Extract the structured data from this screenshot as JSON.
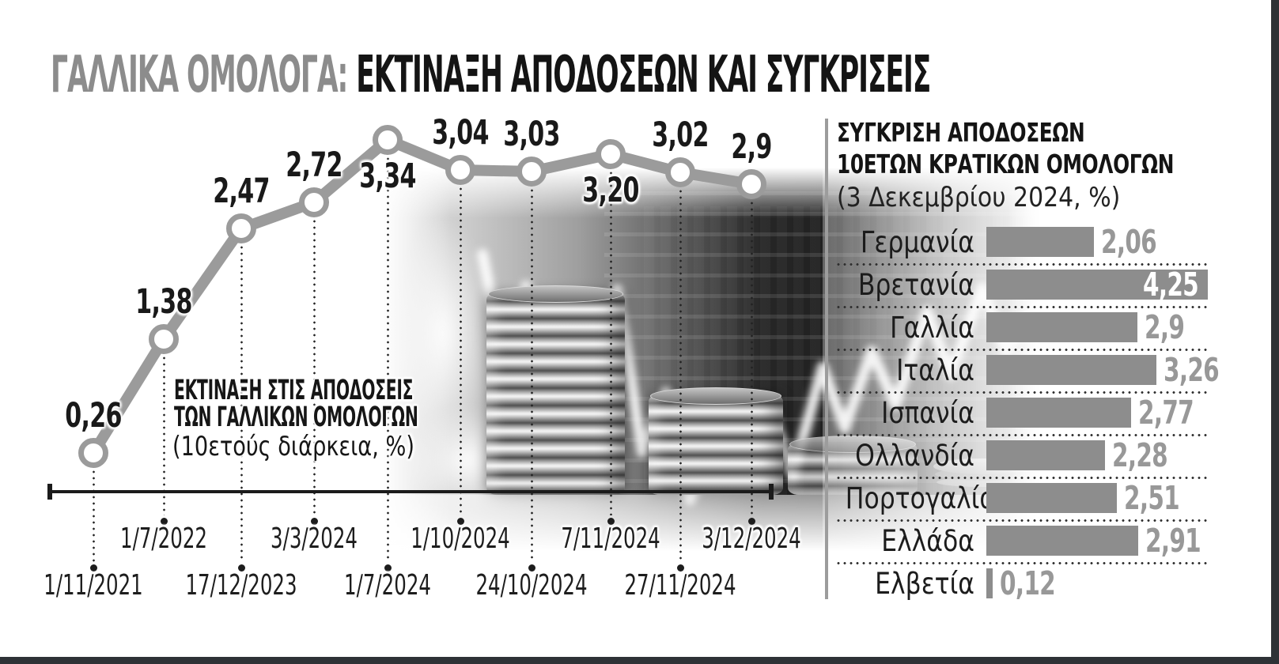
{
  "title": {
    "prefix": "ΓΑΛΛΙΚΑ ΟΜΟΛΟΓΑ:",
    "main": " ΕΚΤΙΝΑΞΗ ΑΠΟΔΟΣΕΩΝ ΚΑΙ ΣΥΓΚΡΙΣΕΙΣ"
  },
  "line_chart": {
    "annotation_line1": "ΕΚΤΙΝΑΞΗ ΣΤΙΣ ΑΠΟΔΟΣΕΙΣ",
    "annotation_line2": "ΤΩΝ ΓΑΛΛΙΚΩΝ ΟΜΟΛΟΓΩΝ",
    "annotation_line3": "(10ετούς διάρκεια, %)",
    "points": [
      {
        "date": "1/11/2021",
        "value": 0.26,
        "label": "0,26",
        "label_side": "above",
        "date_row": "lower"
      },
      {
        "date": "1/7/2022",
        "value": 1.38,
        "label": "1,38",
        "label_side": "above",
        "date_row": "upper"
      },
      {
        "date": "17/12/2023",
        "value": 2.47,
        "label": "2,47",
        "label_side": "above",
        "date_row": "lower"
      },
      {
        "date": "3/3/2024",
        "value": 2.72,
        "label": "2,72",
        "label_side": "above",
        "date_row": "upper"
      },
      {
        "date": "1/7/2024",
        "value": 3.34,
        "label": "3,34",
        "label_side": "below",
        "date_row": "lower"
      },
      {
        "date": "1/10/2024",
        "value": 3.04,
        "label": "3,04",
        "label_side": "above",
        "date_row": "upper"
      },
      {
        "date": "24/10/2024",
        "value": 3.03,
        "label": "3,03",
        "label_side": "above",
        "date_row": "lower"
      },
      {
        "date": "7/11/2024",
        "value": 3.2,
        "label": "3,20",
        "label_side": "below",
        "date_row": "upper"
      },
      {
        "date": "27/11/2024",
        "value": 3.02,
        "label": "3,02",
        "label_side": "above",
        "date_row": "lower"
      },
      {
        "date": "3/12/2024",
        "value": 2.9,
        "label": "2,9",
        "label_side": "above",
        "date_row": "upper"
      }
    ]
  },
  "bar_panel": {
    "heading_line1": "ΣΥΓΚΡΙΣΗ ΑΠΟΔΟΣΕΩΝ",
    "heading_line2": "10ΕΤΩΝ ΚΡΑΤΙΚΩΝ ΟΜΟΛΟΓΩΝ",
    "subtitle": "(3 Δεκεμβρίου 2024, %)",
    "max_value": 4.25,
    "rows": [
      {
        "country": "Γερμανία",
        "value": 2.06,
        "label": "2,06",
        "value_inside": false
      },
      {
        "country": "Βρετανία",
        "value": 4.25,
        "label": "4,25",
        "value_inside": true
      },
      {
        "country": "Γαλλία",
        "value": 2.9,
        "label": "2,9",
        "value_inside": false
      },
      {
        "country": "Ιταλία",
        "value": 3.26,
        "label": "3,26",
        "value_inside": false
      },
      {
        "country": "Ισπανία",
        "value": 2.77,
        "label": "2,77",
        "value_inside": false
      },
      {
        "country": "Ολλανδία",
        "value": 2.28,
        "label": "2,28",
        "value_inside": false
      },
      {
        "country": "Πορτογαλία",
        "value": 2.51,
        "label": "2,51",
        "value_inside": false
      },
      {
        "country": "Ελλάδα",
        "value": 2.91,
        "label": "2,91",
        "value_inside": false
      },
      {
        "country": "Ελβετία",
        "value": 0.12,
        "label": "0,12",
        "value_inside": false
      }
    ]
  },
  "colors": {
    "line_gray": "#9b9b9b",
    "bar_gray": "#8d8d8d",
    "value_gray": "#989898",
    "value_inside_white": "#ffffff",
    "title_gray": "#8c8c8c",
    "ink_black": "#151515",
    "edge_strip": "#2e3236"
  },
  "chart_data": [
    {
      "type": "line",
      "title": "ΕΚΤΙΝΑΞΗ ΣΤΙΣ ΑΠΟΔΟΣΕΙΣ ΤΩΝ ΓΑΛΛΙΚΩΝ ΟΜΟΛΟΓΩΝ",
      "subtitle": "(10ετούς διάρκεια, %)",
      "x": [
        "1/11/2021",
        "1/7/2022",
        "17/12/2023",
        "3/3/2024",
        "1/7/2024",
        "1/10/2024",
        "24/10/2024",
        "7/11/2024",
        "27/11/2024",
        "3/12/2024"
      ],
      "y": [
        0.26,
        1.38,
        2.47,
        2.72,
        3.34,
        3.04,
        3.03,
        3.2,
        3.02,
        2.9
      ],
      "point_labels": [
        "0,26",
        "1,38",
        "2,47",
        "2,72",
        "3,34",
        "3,04",
        "3,03",
        "3,20",
        "3,02",
        "2,9"
      ],
      "ylim": [
        0,
        3.5
      ],
      "grid": false,
      "legend": "none"
    },
    {
      "type": "bar",
      "orientation": "horizontal",
      "title": "ΣΥΓΚΡΙΣΗ ΑΠΟΔΟΣΕΩΝ 10ΕΤΩΝ ΚΡΑΤΙΚΩΝ ΟΜΟΛΟΓΩΝ",
      "subtitle": "(3 Δεκεμβρίου 2024, %)",
      "categories": [
        "Γερμανία",
        "Βρετανία",
        "Γαλλία",
        "Ιταλία",
        "Ισπανία",
        "Ολλανδία",
        "Πορτογαλία",
        "Ελλάδα",
        "Ελβετία"
      ],
      "values": [
        2.06,
        4.25,
        2.9,
        3.26,
        2.77,
        2.28,
        2.51,
        2.91,
        0.12
      ],
      "value_labels": [
        "2,06",
        "4,25",
        "2,9",
        "3,26",
        "2,77",
        "2,28",
        "2,51",
        "2,91",
        "0,12"
      ],
      "xlim": [
        0,
        4.25
      ],
      "grid": false,
      "legend": "none"
    }
  ]
}
